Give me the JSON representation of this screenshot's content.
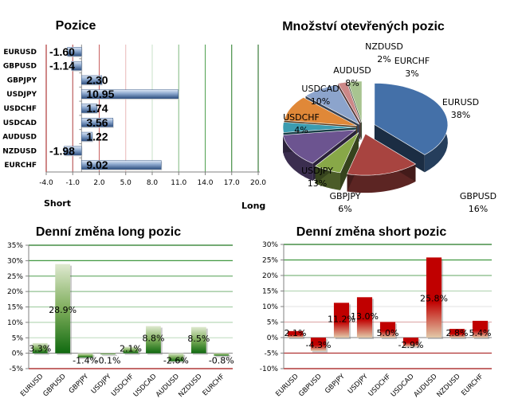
{
  "chart_data": [
    {
      "type": "bar",
      "orientation": "horizontal",
      "title": "Pozice",
      "categories": [
        "EURUSD",
        "GBPUSD",
        "GBPJPY",
        "USDJPY",
        "USDCHF",
        "USDCAD",
        "AUDUSD",
        "NZDUSD",
        "EURCHF"
      ],
      "values": [
        -1.6,
        -1.14,
        2.3,
        10.95,
        1.74,
        3.56,
        1.22,
        -1.98,
        9.02
      ],
      "value_labels": [
        "-1.60",
        "-1.14",
        "2.30",
        "10.95",
        "1.74",
        "3.56",
        "1.22",
        "-1.98",
        "9.02"
      ],
      "xlim": [
        -4.0,
        20.0
      ],
      "ticks": [
        -4.0,
        -1.0,
        2.0,
        5.0,
        8.0,
        11.0,
        14.0,
        17.0,
        20.0
      ],
      "tick_labels": [
        "-4.0",
        "-1.0",
        "2.0",
        "5.0",
        "8.0",
        "11.0",
        "14.0",
        "17.0",
        "20.0"
      ],
      "grid_colors": [
        "#a01010",
        "#b04040",
        "#c86060",
        "#e8b8b8",
        "#c8e0c8",
        "#80b880",
        "#50a050",
        "#207820",
        "#106010"
      ],
      "xlabel_left": "Short",
      "xlabel_right": "Long",
      "bar_color": "#4a6fa5"
    },
    {
      "type": "pie",
      "title": "Množství otevřených pozic",
      "categories": [
        "EURUSD",
        "GBPUSD",
        "GBPJPY",
        "USDJPY",
        "USDCHF",
        "USDCAD",
        "AUDUSD",
        "NZDUSD",
        "EURCHF"
      ],
      "values": [
        38,
        16,
        6,
        13,
        4,
        10,
        8,
        2,
        3
      ],
      "value_labels": [
        "38%",
        "16%",
        "6%",
        "13%",
        "4%",
        "10%",
        "8%",
        "2%",
        "3%"
      ],
      "colors": [
        "#4470a8",
        "#a84440",
        "#88a848",
        "#6c5490",
        "#3c9cb0",
        "#e08838",
        "#8ca4cc",
        "#cc8888",
        "#a8c490"
      ]
    },
    {
      "type": "bar",
      "title": "Denní změna long pozic",
      "categories": [
        "EURUSD",
        "GBPUSD",
        "GBPJPY",
        "USDJPY",
        "USDCHF",
        "USDCAD",
        "AUDUSD",
        "NZDUSD",
        "EURCHF"
      ],
      "values": [
        3.3,
        28.9,
        -1.4,
        -0.1,
        2.1,
        8.8,
        -2.6,
        8.5,
        -0.8
      ],
      "value_labels": [
        "3.3%",
        "28.9%",
        "-1.4%",
        "-0.1%",
        "2.1%",
        "8.8%",
        "-2.6%",
        "8.5%",
        "-0.8%"
      ],
      "ylim": [
        -5,
        35
      ],
      "ticks": [
        -5,
        0,
        5,
        10,
        15,
        20,
        25,
        30,
        35
      ],
      "tick_labels": [
        "-5%",
        "0%",
        "5%",
        "10%",
        "15%",
        "20%",
        "25%",
        "30%",
        "35%"
      ],
      "grid_colors": [
        "#a01010",
        "#808080",
        "#c8e0c8",
        "#b8d8b8",
        "#a8d0a8",
        "#90c090",
        "#70b070",
        "#409840",
        "#207820"
      ],
      "bar_color": "#1e7a1e"
    },
    {
      "type": "bar",
      "title": "Denní změna short pozic",
      "categories": [
        "EURUSD",
        "GBPUSD",
        "GBPJPY",
        "USDJPY",
        "USDCHF",
        "USDCAD",
        "AUDUSD",
        "NZDUSD",
        "EURCHF"
      ],
      "values": [
        2.1,
        -4.3,
        11.2,
        13.0,
        5.0,
        -2.9,
        25.8,
        2.8,
        5.4
      ],
      "value_labels": [
        "2.1%",
        "-4.3%",
        "11.2%",
        "13.0%",
        "5.0%",
        "-2.9%",
        "25.8%",
        "2.8%",
        "5.4%"
      ],
      "ylim": [
        -10,
        30
      ],
      "ticks": [
        -10,
        -5,
        0,
        5,
        10,
        15,
        20,
        25,
        30
      ],
      "tick_labels": [
        "-10%",
        "-5%",
        "0%",
        "5%",
        "10%",
        "15%",
        "20%",
        "25%",
        "30%"
      ],
      "grid_colors": [
        "#a01010",
        "#b03030",
        "#808080",
        "#e0b0b0",
        "#e8e8e8",
        "#b8d8b8",
        "#80b880",
        "#409840",
        "#207820"
      ],
      "bar_color": "#c00000"
    }
  ]
}
